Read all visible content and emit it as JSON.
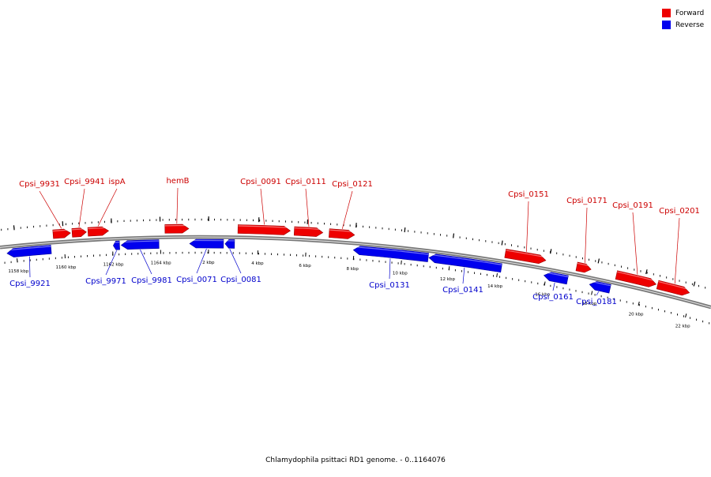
{
  "diagram": {
    "caption": "Chlamydophila psittaci RD1 genome. - 0..1164076",
    "colors": {
      "forward": "#ee0000",
      "reverse": "#0000ee",
      "backbone": "#777777",
      "text_forward": "#cc0000",
      "text_reverse": "#0000cc"
    },
    "legend": [
      {
        "label": "Forward",
        "color": "#ee0000"
      },
      {
        "label": "Reverse",
        "color": "#0000ee"
      }
    ],
    "ticks": [
      {
        "label": "1158 kbp"
      },
      {
        "label": "1160 kbp"
      },
      {
        "label": "1162 kbp"
      },
      {
        "label": "1164 kbp"
      },
      {
        "label": "2 kbp"
      },
      {
        "label": "4 kbp"
      },
      {
        "label": "6 kbp"
      },
      {
        "label": "8 kbp"
      },
      {
        "label": "10 kbp"
      },
      {
        "label": "12 kbp"
      },
      {
        "label": "14 kbp"
      },
      {
        "label": "16 kbp"
      },
      {
        "label": "18 kbp"
      },
      {
        "label": "20 kbp"
      },
      {
        "label": "22 kbp"
      }
    ],
    "genes": [
      {
        "name": "Cpsi_9921",
        "strand": "reverse"
      },
      {
        "name": "Cpsi_9931",
        "strand": "forward"
      },
      {
        "name": "Cpsi_9941",
        "strand": "forward"
      },
      {
        "name": "ispA",
        "strand": "forward"
      },
      {
        "name": "Cpsi_9971",
        "strand": "reverse"
      },
      {
        "name": "Cpsi_9981",
        "strand": "reverse"
      },
      {
        "name": "hemB",
        "strand": "forward"
      },
      {
        "name": "Cpsi_0071",
        "strand": "reverse"
      },
      {
        "name": "Cpsi_0081",
        "strand": "reverse"
      },
      {
        "name": "Cpsi_0091",
        "strand": "forward"
      },
      {
        "name": "Cpsi_0111",
        "strand": "forward"
      },
      {
        "name": "Cpsi_0121",
        "strand": "forward"
      },
      {
        "name": "Cpsi_0131",
        "strand": "reverse"
      },
      {
        "name": "Cpsi_0141",
        "strand": "reverse"
      },
      {
        "name": "Cpsi_0151",
        "strand": "forward"
      },
      {
        "name": "Cpsi_0161",
        "strand": "reverse"
      },
      {
        "name": "Cpsi_0171",
        "strand": "forward"
      },
      {
        "name": "Cpsi_0181",
        "strand": "reverse"
      },
      {
        "name": "Cpsi_0191",
        "strand": "forward"
      },
      {
        "name": "Cpsi_0201",
        "strand": "forward"
      }
    ]
  }
}
